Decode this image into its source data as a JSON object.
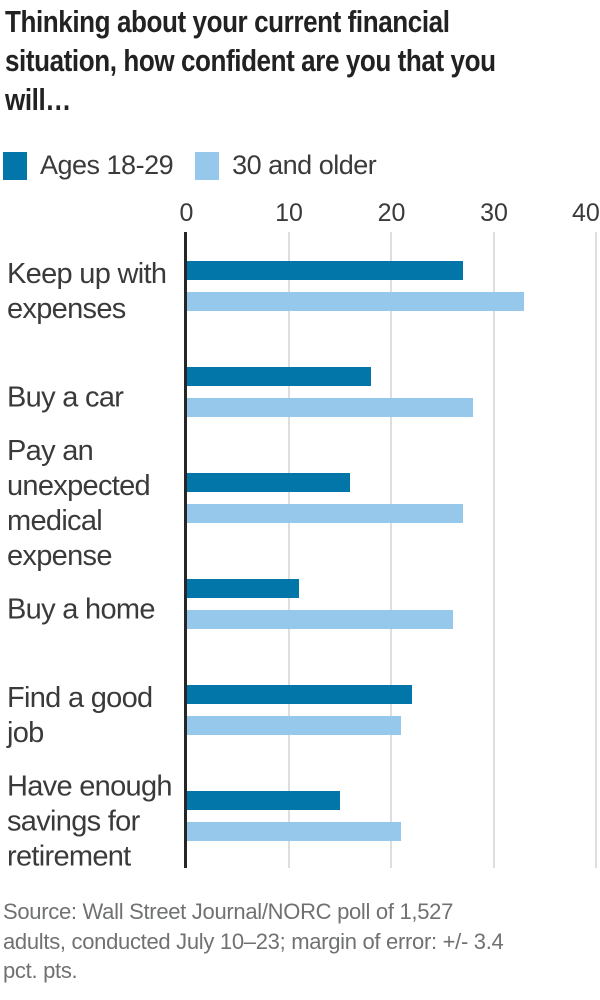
{
  "title": "Thinking about your current financial\nsituation, how confident are you that you\nwill…",
  "source_note": "Source: Wall Street Journal/NORC poll of 1,527\nadults, conducted July 10–23; margin of error: +/- 3.4\npct. pts.",
  "chart_data": {
    "type": "bar",
    "orientation": "horizontal",
    "title": "Thinking about your current financial situation, how confident are you that you will…",
    "categories": [
      "Keep up with\nexpenses",
      "Buy a car",
      "Pay an\nunexpected\nmedical\nexpense",
      "Buy a home",
      "Find a good\njob",
      "Have enough\nsavings for\nretirement"
    ],
    "series": [
      {
        "name": "Ages 18-29",
        "color": "#0376a9",
        "values": [
          27,
          18,
          16,
          11,
          22,
          15
        ]
      },
      {
        "name": "30 and older",
        "color": "#95c8eb",
        "values": [
          33,
          28,
          27,
          26,
          21,
          21
        ]
      }
    ],
    "x_axis": {
      "min": 0,
      "max": 40,
      "ticks": [
        0,
        10,
        20,
        30,
        40
      ],
      "position": "top",
      "grid": true
    },
    "legend_position": "top-left"
  },
  "colors": {
    "axis": "#262626",
    "gridline": "#dedede",
    "title_text": "#222222",
    "label_text": "#3a3a3a",
    "source_text": "#6f7173",
    "background": "#ffffff"
  }
}
